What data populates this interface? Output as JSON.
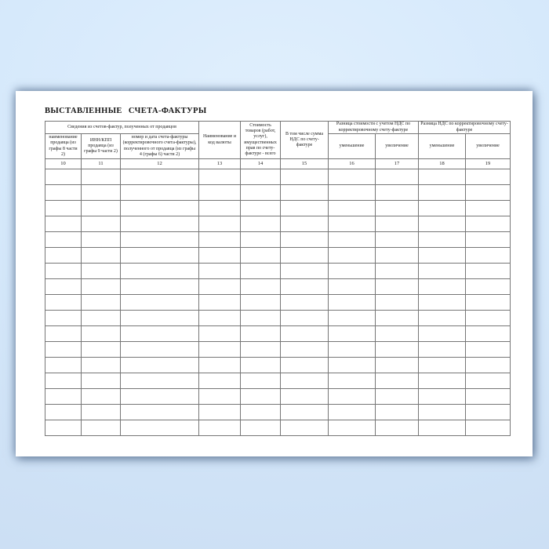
{
  "colors": {
    "backdrop_blue": "#d3e8fb",
    "page_background": "#ffffff",
    "grid_line": "#767676",
    "text": "#222222"
  },
  "document": {
    "title": "ВЫСТАВЛЕННЫЕ СЧЕТА-ФАКТУРЫ"
  },
  "table": {
    "groups": {
      "received_from_sellers": "Сведения из счетов-фактур, полученных от продавцов",
      "cost_difference_with_vat": "Разница стоимости с учетом НДС по корректировочному счету-фактуре",
      "vat_difference": "Разница НДС по корректировочному счету-фактуре"
    },
    "columns": [
      {
        "num": "10",
        "header": "наименование продавца (из графы 8 части 2)"
      },
      {
        "num": "11",
        "header": "ИНН/КПП продавца (из графы 9 части 2)"
      },
      {
        "num": "12",
        "header": "номер и дата счета-фактуры (корректировочного счета-фактуры), полученного от продавца (из графы 4 (графы 6) части 2)"
      },
      {
        "num": "13",
        "header": "Наименование и код валюты"
      },
      {
        "num": "14",
        "header": "Стоимость товаров (работ, услуг), имущественных прав по счету-фактуре - всего"
      },
      {
        "num": "15",
        "header": "В том числе сумма НДС по счету-фактуре"
      },
      {
        "num": "16",
        "header": "уменьшение"
      },
      {
        "num": "17",
        "header": "увеличение"
      },
      {
        "num": "18",
        "header": "уменьшение"
      },
      {
        "num": "19",
        "header": "увеличение"
      }
    ],
    "empty_row_count": 17
  }
}
